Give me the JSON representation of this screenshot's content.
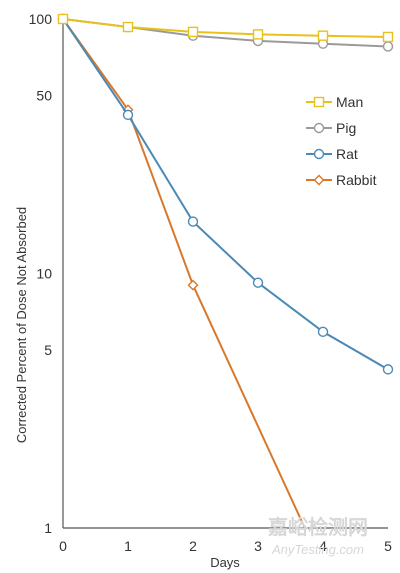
{
  "chart_data": {
    "type": "line",
    "title": "",
    "xlabel": "Days",
    "ylabel": "Corrected Percent of Dose Not Absorbed",
    "xlim": [
      0,
      5
    ],
    "ylim": [
      1,
      100
    ],
    "y_scale": "log",
    "x_ticks": [
      "0",
      "1",
      "2",
      "3",
      "4",
      "5"
    ],
    "y_ticks": [
      {
        "value": 1,
        "label": "1"
      },
      {
        "value": 5,
        "label": "5"
      },
      {
        "value": 10,
        "label": "10"
      },
      {
        "value": 50,
        "label": "50"
      },
      {
        "value": 100,
        "label": "100"
      }
    ],
    "grid": false,
    "legend_position": "right",
    "series": [
      {
        "name": "Man",
        "color": "#e8c21a",
        "marker": "square",
        "x": [
          0,
          1,
          2,
          3,
          4,
          5
        ],
        "values": [
          100,
          93,
          89,
          87,
          86,
          85
        ]
      },
      {
        "name": "Pig",
        "color": "#9a9a9a",
        "marker": "circle",
        "x": [
          0,
          1,
          2,
          3,
          4,
          5
        ],
        "values": [
          100,
          93,
          86,
          82,
          80,
          78
        ]
      },
      {
        "name": "Rat",
        "color": "#4a8ab5",
        "marker": "circle",
        "x": [
          0,
          1,
          2,
          3,
          4,
          5
        ],
        "values": [
          100,
          42,
          16,
          9.2,
          5.9,
          4.2
        ]
      },
      {
        "name": "Rabbit",
        "color": "#d9782a",
        "marker": "diamond",
        "x": [
          0,
          1,
          2,
          3.72
        ],
        "values": [
          100,
          44,
          9.0,
          1.0
        ]
      }
    ]
  },
  "watermark": {
    "line1": "嘉峪检测网",
    "line2": "AnyTesting.com"
  }
}
